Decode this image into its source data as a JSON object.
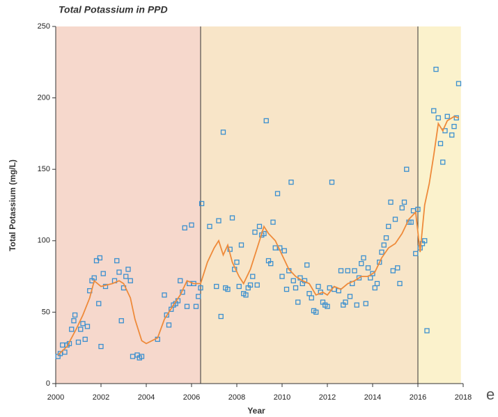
{
  "chart_data": {
    "type": "scatter",
    "title": "Total Potassium in PPD",
    "x_label": "Year",
    "y_label": "Total Potassium (mg/L)",
    "xlim": [
      2000,
      2018
    ],
    "xticks": [
      2000,
      2002,
      2004,
      2006,
      2008,
      2010,
      2012,
      2014,
      2016,
      2018
    ],
    "ylim": [
      0,
      250
    ],
    "yticks": [
      0,
      50,
      100,
      150,
      200,
      250
    ],
    "regions": [
      {
        "x": [
          2000,
          2006.4
        ],
        "color": "#f6d8cc"
      },
      {
        "x": [
          2006.4,
          2016
        ],
        "color": "#f8e5c8"
      },
      {
        "x": [
          2016,
          2017.9
        ],
        "color": "#fbf2cc"
      }
    ],
    "region_dividers": [
      2006.4,
      2016
    ],
    "series": [
      {
        "color": "#3a8fcf",
        "x": [
          2000.1,
          2000.2,
          2000.3,
          2000.4,
          2000.5,
          2000.6,
          2000.7,
          2000.8,
          2000.85,
          2001.0,
          2001.1,
          2001.2,
          2001.3,
          2001.4,
          2001.5,
          2001.6,
          2001.7,
          2001.8,
          2001.9,
          2001.95,
          2002.0,
          2002.1,
          2002.2,
          2002.6,
          2002.7,
          2002.8,
          2002.9,
          2003.0,
          2003.1,
          2003.2,
          2003.3,
          2003.4,
          2003.6,
          2003.7,
          2003.8,
          2004.5,
          2004.8,
          2004.9,
          2005.0,
          2005.1,
          2005.2,
          2005.3,
          2005.4,
          2005.5,
          2005.6,
          2005.7,
          2005.8,
          2005.9,
          2006.0,
          2006.1,
          2006.2,
          2006.3,
          2006.4,
          2006.45,
          2006.8,
          2007.1,
          2007.2,
          2007.3,
          2007.4,
          2007.5,
          2007.6,
          2007.7,
          2007.8,
          2007.9,
          2008.0,
          2008.1,
          2008.2,
          2008.3,
          2008.4,
          2008.5,
          2008.6,
          2008.7,
          2008.8,
          2008.9,
          2009.0,
          2009.1,
          2009.2,
          2009.3,
          2009.4,
          2009.5,
          2009.6,
          2009.7,
          2009.8,
          2009.9,
          2010.0,
          2010.1,
          2010.2,
          2010.3,
          2010.4,
          2010.5,
          2010.6,
          2010.7,
          2010.8,
          2010.9,
          2011.0,
          2011.1,
          2011.2,
          2011.3,
          2011.4,
          2011.5,
          2011.6,
          2011.7,
          2011.8,
          2011.9,
          2012.0,
          2012.1,
          2012.2,
          2012.3,
          2012.5,
          2012.6,
          2012.7,
          2012.8,
          2012.9,
          2013.0,
          2013.1,
          2013.2,
          2013.3,
          2013.4,
          2013.5,
          2013.6,
          2013.7,
          2013.8,
          2013.9,
          2014.0,
          2014.1,
          2014.2,
          2014.3,
          2014.4,
          2014.5,
          2014.6,
          2014.7,
          2014.8,
          2014.9,
          2015.0,
          2015.1,
          2015.2,
          2015.3,
          2015.4,
          2015.5,
          2015.6,
          2015.7,
          2015.8,
          2015.9,
          2016.0,
          2016.1,
          2016.2,
          2016.3,
          2016.4,
          2016.7,
          2016.8,
          2016.9,
          2017.0,
          2017.1,
          2017.2,
          2017.3,
          2017.5,
          2017.6,
          2017.7,
          2017.8
        ],
        "values": [
          19,
          21,
          27,
          22,
          27,
          28,
          38,
          44,
          48,
          29,
          38,
          42,
          31,
          40,
          65,
          72,
          74,
          86,
          56,
          88,
          26,
          77,
          68,
          72,
          86,
          78,
          44,
          67,
          75,
          80,
          72,
          19,
          20,
          18,
          19,
          31,
          62,
          48,
          41,
          52,
          55,
          56,
          58,
          72,
          64,
          109,
          54,
          70,
          111,
          70,
          54,
          61,
          67,
          126,
          110,
          68,
          114,
          47,
          176,
          67,
          66,
          94,
          116,
          80,
          85,
          68,
          97,
          63,
          62,
          67,
          69,
          75,
          106,
          69,
          110,
          104,
          105,
          184,
          86,
          84,
          113,
          95,
          133,
          95,
          75,
          93,
          66,
          79,
          141,
          72,
          67,
          57,
          74,
          70,
          72,
          83,
          63,
          60,
          51,
          50,
          68,
          64,
          57,
          55,
          54,
          67,
          141,
          66,
          65,
          79,
          55,
          57,
          79,
          61,
          70,
          79,
          55,
          74,
          84,
          88,
          56,
          81,
          74,
          77,
          67,
          70,
          85,
          92,
          97,
          102,
          110,
          127,
          79,
          115,
          81,
          70,
          123,
          127,
          150,
          113,
          113,
          121,
          91,
          122,
          95,
          98,
          100,
          37,
          191,
          220,
          186,
          168,
          155,
          177,
          187,
          174,
          180,
          186,
          210
        ]
      },
      {
        "type": "line",
        "color": "#ee8a3a",
        "x": [
          2000.1,
          2000.5,
          2000.9,
          2001.2,
          2001.5,
          2001.7,
          2002.0,
          2002.5,
          2002.8,
          2003.0,
          2003.3,
          2003.5,
          2003.8,
          2004.0,
          2004.5,
          2004.8,
          2005.2,
          2005.5,
          2005.8,
          2006.1,
          2006.4,
          2006.7,
          2007.0,
          2007.2,
          2007.4,
          2007.6,
          2007.8,
          2008.1,
          2008.3,
          2008.6,
          2008.9,
          2009.2,
          2009.4,
          2009.7,
          2010.0,
          2010.3,
          2010.6,
          2010.9,
          2011.2,
          2011.5,
          2011.8,
          2012.0,
          2012.3,
          2012.6,
          2012.9,
          2013.2,
          2013.5,
          2013.8,
          2014.1,
          2014.4,
          2014.7,
          2015.0,
          2015.3,
          2015.6,
          2015.9,
          2016.1,
          2016.3,
          2016.5,
          2016.7,
          2016.9,
          2017.1,
          2017.3,
          2017.6,
          2017.8
        ],
        "values": [
          20,
          26,
          38,
          48,
          60,
          72,
          68,
          70,
          72,
          70,
          60,
          45,
          30,
          28,
          32,
          45,
          55,
          62,
          72,
          70,
          70,
          85,
          95,
          100,
          90,
          97,
          85,
          75,
          70,
          80,
          95,
          110,
          105,
          100,
          90,
          80,
          75,
          72,
          70,
          62,
          64,
          62,
          68,
          66,
          70,
          72,
          75,
          75,
          78,
          88,
          95,
          98,
          105,
          115,
          120,
          92,
          125,
          140,
          160,
          182,
          177,
          184,
          187,
          186
        ]
      }
    ],
    "stray_text": "e"
  }
}
